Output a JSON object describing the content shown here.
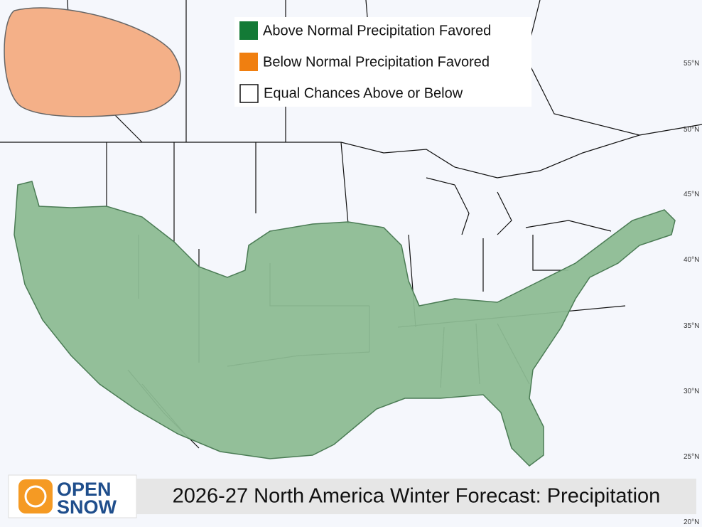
{
  "legend": {
    "items": [
      "Above Normal Precipitation Favored",
      "Below Normal Precipitation Favored",
      "Equal Chances Above or Below"
    ]
  },
  "title": "2026-27 North America Winter Forecast: Precipitation",
  "logo": {
    "line1": "OPEN",
    "line2": "SNOW"
  },
  "latitude_labels": [
    "55°N",
    "50°N",
    "45°N",
    "40°N",
    "35°N",
    "30°N",
    "25°N",
    "20°N"
  ]
}
